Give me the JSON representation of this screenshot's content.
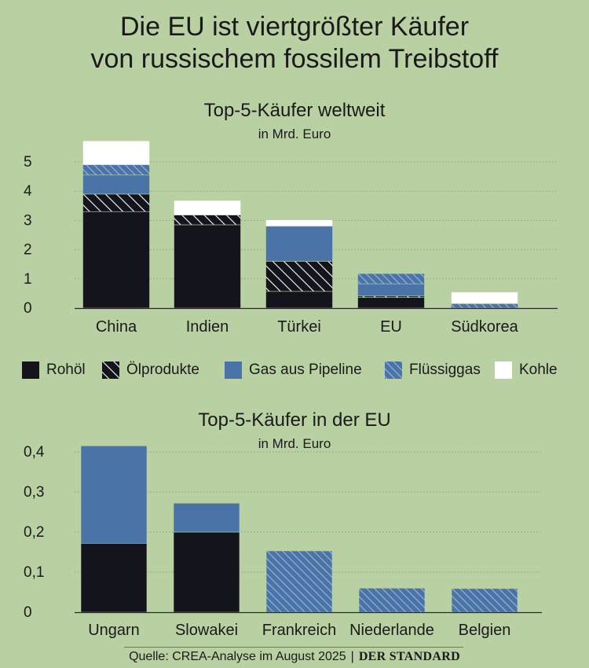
{
  "title_line1": "Die EU ist viertgrößter Käufer",
  "title_line2": "von russischem fossilem Treibstoff",
  "legend": [
    {
      "label": "Rohöl",
      "key": "rohoel"
    },
    {
      "label": "Ölprodukte",
      "key": "oelprodukte"
    },
    {
      "label": "Gas aus Pipeline",
      "key": "gas_pipeline"
    },
    {
      "label": "Flüssiggas",
      "key": "fluessiggas"
    },
    {
      "label": "Kohle",
      "key": "kohle"
    }
  ],
  "colors": {
    "background": "#b9d0a3",
    "rohoel": "#14141c",
    "oelprodukte_bg": "#14141c",
    "oelprodukte_hatch": "#ffffff",
    "gas_pipeline": "#4a73a8",
    "fluessiggas_bg": "#4a73a8",
    "fluessiggas_hatch": "#9cb7d6",
    "kohle": "#ffffff"
  },
  "source": {
    "text": "Quelle: CREA-Analyse im August 2025",
    "separator": "|",
    "brand": "DER STANDARD"
  },
  "chart_data": [
    {
      "type": "bar",
      "stacked": true,
      "title": "Top-5-Käufer weltweit",
      "subtitle": "in Mrd. Euro",
      "categories": [
        "China",
        "Indien",
        "Türkei",
        "EU",
        "Südkorea"
      ],
      "series": [
        {
          "name": "Rohöl",
          "key": "rohoel",
          "values": [
            3.3,
            2.85,
            0.57,
            0.36,
            0
          ]
        },
        {
          "name": "Ölprodukte",
          "key": "oelprodukte",
          "values": [
            0.6,
            0.33,
            1.03,
            0.05,
            0
          ]
        },
        {
          "name": "Gas aus Pipeline",
          "key": "gas_pipeline",
          "values": [
            0.65,
            0,
            1.2,
            0.42,
            0
          ]
        },
        {
          "name": "Flüssiggas",
          "key": "fluessiggas",
          "values": [
            0.35,
            0,
            0,
            0.35,
            0.15
          ]
        },
        {
          "name": "Kohle",
          "key": "kohle",
          "values": [
            0.82,
            0.5,
            0.22,
            0,
            0.4
          ]
        }
      ],
      "yticks": [
        0,
        1,
        2,
        3,
        4,
        5
      ],
      "ylim": [
        0,
        5.9
      ],
      "grid": true
    },
    {
      "type": "bar",
      "stacked": true,
      "title": "Top-5-Käufer in der EU",
      "subtitle": "in Mrd. Euro",
      "categories": [
        "Ungarn",
        "Slowakei",
        "Frankreich",
        "Niederlande",
        "Belgien"
      ],
      "series": [
        {
          "name": "Rohöl",
          "key": "rohoel",
          "values": [
            0.172,
            0.2,
            0,
            0,
            0
          ]
        },
        {
          "name": "Gas aus Pipeline",
          "key": "gas_pipeline",
          "values": [
            0.243,
            0.072,
            0,
            0,
            0
          ]
        },
        {
          "name": "Flüssiggas",
          "key": "fluessiggas",
          "values": [
            0,
            0,
            0.153,
            0.06,
            0.059
          ]
        }
      ],
      "yticks": [
        0,
        0.1,
        0.2,
        0.3,
        0.4
      ],
      "yticklabels": [
        "0",
        "0,1",
        "0,2",
        "0,3",
        "0,4"
      ],
      "ylim": [
        0,
        0.425
      ],
      "grid": true
    }
  ]
}
